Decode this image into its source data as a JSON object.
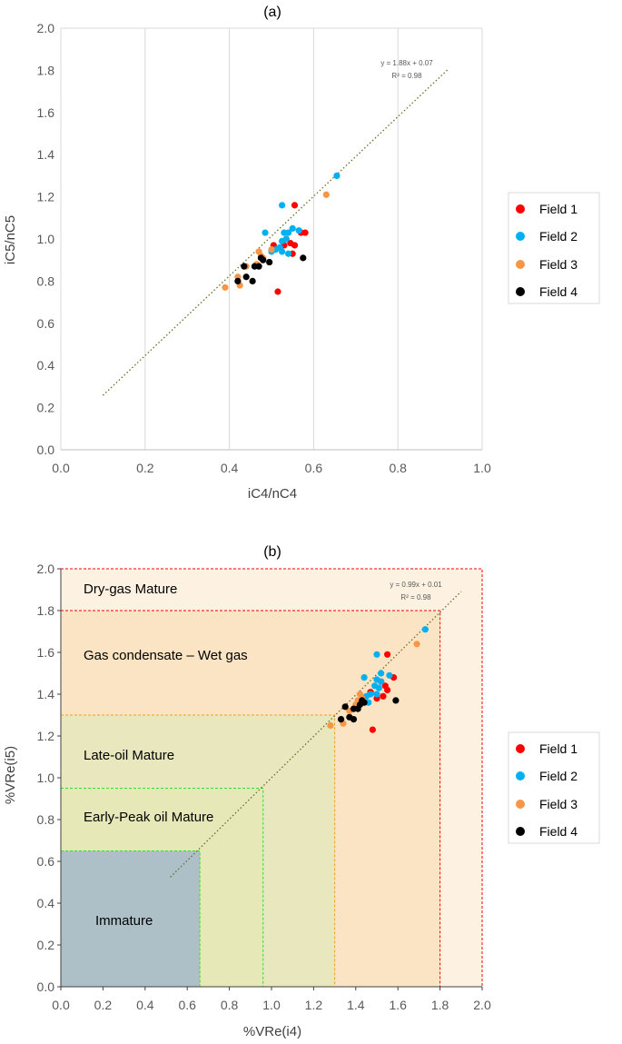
{
  "chart_data": [
    {
      "type": "scatter",
      "panel_label": "(a)",
      "title": "",
      "xlabel": "iC4/nC4",
      "ylabel": "iC5/nC5",
      "xlim": [
        0,
        1.0
      ],
      "ylim": [
        0,
        2.0
      ],
      "xticks": [
        "0.0",
        "0.2",
        "0.4",
        "0.6",
        "0.8",
        "1.0"
      ],
      "yticks": [
        "0.0",
        "0.2",
        "0.4",
        "0.6",
        "0.8",
        "1.0",
        "1.2",
        "1.4",
        "1.6",
        "1.8",
        "2.0"
      ],
      "grid": "vertical",
      "trendline": {
        "equation": "y = 1.88x + 0.07",
        "r2": "R² = 0.98",
        "from": [
          0.1,
          0.258
        ],
        "to": [
          0.92,
          1.8066
        ]
      },
      "legend": [
        "Field 1",
        "Field 2",
        "Field 3",
        "Field 4"
      ],
      "series": [
        {
          "name": "Field 1",
          "color": "#ff0000",
          "points": [
            [
              0.555,
              1.16
            ],
            [
              0.57,
              1.03
            ],
            [
              0.58,
              1.03
            ],
            [
              0.535,
              1.0
            ],
            [
              0.545,
              0.98
            ],
            [
              0.53,
              0.97
            ],
            [
              0.555,
              0.97
            ],
            [
              0.505,
              0.97
            ],
            [
              0.55,
              0.93
            ],
            [
              0.515,
              0.75
            ]
          ]
        },
        {
          "name": "Field 2",
          "color": "#00b0f0",
          "points": [
            [
              0.655,
              1.3
            ],
            [
              0.525,
              1.16
            ],
            [
              0.485,
              1.03
            ],
            [
              0.55,
              1.05
            ],
            [
              0.565,
              1.04
            ],
            [
              0.53,
              1.03
            ],
            [
              0.54,
              1.03
            ],
            [
              0.535,
              1.0
            ],
            [
              0.525,
              0.99
            ],
            [
              0.52,
              0.96
            ],
            [
              0.51,
              0.95
            ],
            [
              0.5,
              0.94
            ],
            [
              0.525,
              0.94
            ],
            [
              0.54,
              0.93
            ]
          ]
        },
        {
          "name": "Field 3",
          "color": "#f79646",
          "points": [
            [
              0.63,
              1.21
            ],
            [
              0.5,
              0.95
            ],
            [
              0.47,
              0.94
            ],
            [
              0.475,
              0.92
            ],
            [
              0.48,
              0.91
            ],
            [
              0.465,
              0.88
            ],
            [
              0.44,
              0.87
            ],
            [
              0.42,
              0.82
            ],
            [
              0.425,
              0.78
            ],
            [
              0.39,
              0.77
            ]
          ]
        },
        {
          "name": "Field 4",
          "color": "#000000",
          "points": [
            [
              0.575,
              0.91
            ],
            [
              0.475,
              0.91
            ],
            [
              0.48,
              0.9
            ],
            [
              0.495,
              0.89
            ],
            [
              0.46,
              0.87
            ],
            [
              0.47,
              0.87
            ],
            [
              0.435,
              0.87
            ],
            [
              0.42,
              0.8
            ],
            [
              0.44,
              0.82
            ],
            [
              0.455,
              0.8
            ]
          ]
        }
      ]
    },
    {
      "type": "scatter",
      "panel_label": "(b)",
      "title": "",
      "xlabel": "%VRe(i4)",
      "ylabel": "%VRe(i5)",
      "xlim": [
        0,
        2.0
      ],
      "ylim": [
        0,
        2.0
      ],
      "xticks": [
        "0.0",
        "0.2",
        "0.4",
        "0.6",
        "0.8",
        "1.0",
        "1.2",
        "1.4",
        "1.6",
        "1.8",
        "2.0"
      ],
      "yticks": [
        "0.0",
        "0.2",
        "0.4",
        "0.6",
        "0.8",
        "1.0",
        "1.2",
        "1.4",
        "1.6",
        "1.8",
        "2.0"
      ],
      "grid": "none",
      "trendline": {
        "equation": "y = 0.99x + 0.01",
        "r2": "R² = 0.98",
        "from": [
          0.52,
          0.5248
        ],
        "to": [
          1.9,
          1.891
        ]
      },
      "zones": [
        {
          "label": "Dry-gas Mature",
          "x_max": 2.0,
          "y_max": 2.0,
          "fill": "#fdf2e2",
          "stroke": "#ff0000"
        },
        {
          "label": "Gas condensate – Wet gas",
          "x_max": 1.8,
          "y_max": 1.8,
          "fill": "#fbe4c3",
          "stroke": "#ff0000"
        },
        {
          "label": "Late-oil Mature",
          "x_max": 1.3,
          "y_max": 1.3,
          "fill": "#e8e7be",
          "stroke": "#f0a020"
        },
        {
          "label": "Early-Peak oil Mature",
          "x_max": 0.96,
          "y_max": 0.95,
          "fill": "#e6e8b8",
          "stroke": "#33dd33"
        },
        {
          "label": "Immature",
          "x_max": 0.66,
          "y_max": 0.65,
          "fill": "#adc0c7",
          "stroke": "#33dd33"
        }
      ],
      "legend": [
        "Field 1",
        "Field 2",
        "Field 3",
        "Field 4"
      ],
      "series": [
        {
          "name": "Field 1",
          "color": "#ff0000",
          "points": [
            [
              1.55,
              1.59
            ],
            [
              1.58,
              1.48
            ],
            [
              1.52,
              1.46
            ],
            [
              1.54,
              1.44
            ],
            [
              1.55,
              1.42
            ],
            [
              1.53,
              1.39
            ],
            [
              1.48,
              1.23
            ],
            [
              1.47,
              1.41
            ],
            [
              1.5,
              1.38
            ]
          ]
        },
        {
          "name": "Field 2",
          "color": "#00b0f0",
          "points": [
            [
              1.73,
              1.71
            ],
            [
              1.5,
              1.59
            ],
            [
              1.44,
              1.48
            ],
            [
              1.52,
              1.5
            ],
            [
              1.56,
              1.49
            ],
            [
              1.5,
              1.47
            ],
            [
              1.52,
              1.46
            ],
            [
              1.49,
              1.44
            ],
            [
              1.51,
              1.43
            ],
            [
              1.45,
              1.39
            ],
            [
              1.47,
              1.4
            ],
            [
              1.5,
              1.4
            ],
            [
              1.46,
              1.36
            ]
          ]
        },
        {
          "name": "Field 3",
          "color": "#f79646",
          "points": [
            [
              1.69,
              1.64
            ],
            [
              1.42,
              1.4
            ],
            [
              1.43,
              1.38
            ],
            [
              1.41,
              1.37
            ],
            [
              1.44,
              1.36
            ],
            [
              1.4,
              1.35
            ],
            [
              1.37,
              1.32
            ],
            [
              1.33,
              1.28
            ],
            [
              1.34,
              1.26
            ],
            [
              1.28,
              1.25
            ]
          ]
        },
        {
          "name": "Field 4",
          "color": "#000000",
          "points": [
            [
              1.59,
              1.37
            ],
            [
              1.43,
              1.37
            ],
            [
              1.42,
              1.35
            ],
            [
              1.41,
              1.33
            ],
            [
              1.39,
              1.33
            ],
            [
              1.35,
              1.34
            ],
            [
              1.37,
              1.29
            ],
            [
              1.39,
              1.28
            ],
            [
              1.33,
              1.28
            ],
            [
              1.44,
              1.36
            ]
          ]
        }
      ]
    }
  ]
}
